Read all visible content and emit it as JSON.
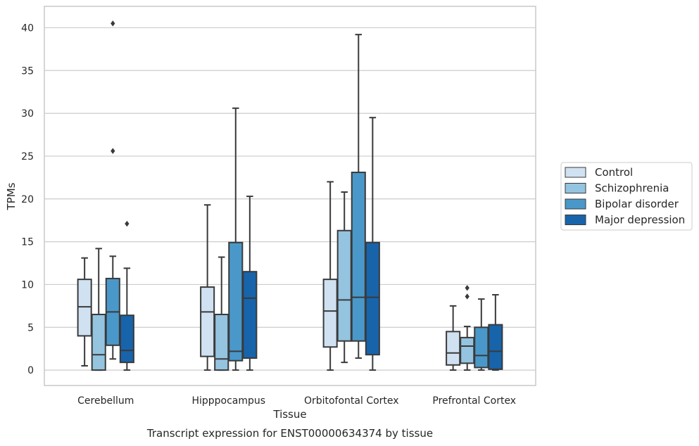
{
  "chart_data": {
    "type": "box",
    "title": "Transcript expression for ENST00000634374 by tissue",
    "xlabel": "Tissue",
    "ylabel": "TPMs",
    "ylim": [
      -1.8,
      42.5
    ],
    "yticks": [
      0,
      5,
      10,
      15,
      20,
      25,
      30,
      35,
      40
    ],
    "ytick_labels": [
      "0",
      "5",
      "10",
      "15",
      "20",
      "25",
      "30",
      "35",
      "40"
    ],
    "grid": "horizontal",
    "legend_position": "right",
    "categories": [
      "Cerebellum",
      "Hipppocampus",
      "Orbitofontal Cortex",
      "Prefrontal Cortex"
    ],
    "series": [
      {
        "name": "Control",
        "color": "#d0e1f2",
        "boxes": [
          {
            "whisker_low": 0.5,
            "q1": 4.0,
            "median": 7.4,
            "q3": 10.6,
            "whisker_high": 13.1,
            "outliers": []
          },
          {
            "whisker_low": 0.0,
            "q1": 1.6,
            "median": 6.8,
            "q3": 9.7,
            "whisker_high": 19.3,
            "outliers": []
          },
          {
            "whisker_low": 0.0,
            "q1": 2.7,
            "median": 6.9,
            "q3": 10.6,
            "whisker_high": 22.0,
            "outliers": []
          },
          {
            "whisker_low": 0.0,
            "q1": 0.6,
            "median": 2.0,
            "q3": 4.5,
            "whisker_high": 7.5,
            "outliers": []
          }
        ]
      },
      {
        "name": "Schizophrenia",
        "color": "#94c4df",
        "boxes": [
          {
            "whisker_low": 0.0,
            "q1": 0.0,
            "median": 1.8,
            "q3": 6.5,
            "whisker_high": 14.2,
            "outliers": []
          },
          {
            "whisker_low": 0.0,
            "q1": 0.0,
            "median": 1.3,
            "q3": 6.5,
            "whisker_high": 13.2,
            "outliers": []
          },
          {
            "whisker_low": 0.9,
            "q1": 3.4,
            "median": 8.2,
            "q3": 16.3,
            "whisker_high": 20.8,
            "outliers": []
          },
          {
            "whisker_low": 0.0,
            "q1": 0.8,
            "median": 2.8,
            "q3": 3.8,
            "whisker_high": 5.1,
            "outliers": [
              8.6,
              9.6
            ]
          }
        ]
      },
      {
        "name": "Bipolar disorder",
        "color": "#4a98c9",
        "boxes": [
          {
            "whisker_low": 1.3,
            "q1": 2.9,
            "median": 6.8,
            "q3": 10.7,
            "whisker_high": 13.3,
            "outliers": [
              25.6,
              40.5
            ]
          },
          {
            "whisker_low": 0.0,
            "q1": 1.1,
            "median": 2.2,
            "q3": 14.9,
            "whisker_high": 30.6,
            "outliers": []
          },
          {
            "whisker_low": 1.4,
            "q1": 3.4,
            "median": 8.5,
            "q3": 23.1,
            "whisker_high": 39.2,
            "outliers": []
          },
          {
            "whisker_low": 0.0,
            "q1": 0.3,
            "median": 1.7,
            "q3": 5.0,
            "whisker_high": 8.3,
            "outliers": []
          }
        ]
      },
      {
        "name": "Major depression",
        "color": "#1764ab",
        "boxes": [
          {
            "whisker_low": 0.0,
            "q1": 0.9,
            "median": 2.3,
            "q3": 6.4,
            "whisker_high": 11.9,
            "outliers": [
              17.1
            ]
          },
          {
            "whisker_low": 0.0,
            "q1": 1.4,
            "median": 8.4,
            "q3": 11.5,
            "whisker_high": 20.3,
            "outliers": []
          },
          {
            "whisker_low": 0.0,
            "q1": 1.8,
            "median": 8.5,
            "q3": 14.9,
            "whisker_high": 29.5,
            "outliers": []
          },
          {
            "whisker_low": 0.0,
            "q1": 0.1,
            "median": 2.2,
            "q3": 5.3,
            "whisker_high": 8.8,
            "outliers": []
          }
        ]
      }
    ]
  }
}
